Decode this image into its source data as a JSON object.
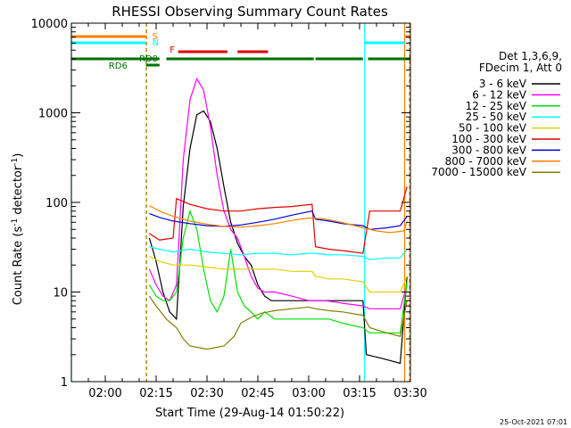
{
  "chart_data": {
    "type": "line",
    "title": "RHESSI Observing Summary Count Rates",
    "xlabel": "Start Time (29-Aug-14 01:50:22)",
    "ylabel_main": "Count Rate (s",
    "ylabel_sup": "-1",
    "ylabel_rest": " detector",
    "ylabel_sup2": "-1",
    "ylabel_end": ")",
    "footer_date": "25-Oct-2021 07:01",
    "x_axis": {
      "start": "01:50",
      "end": "03:30",
      "unit": "minutes"
    },
    "y_axis": {
      "scale": "log",
      "min": 1,
      "max": 10000
    },
    "x_ticks": [
      "02:00",
      "02:15",
      "02:30",
      "02:45",
      "03:00",
      "03:15",
      "03:30"
    ],
    "x_tick_minutes": [
      10,
      25,
      40,
      55,
      70,
      85,
      100
    ],
    "y_ticks": [
      "1",
      "10",
      "100",
      "1000",
      "10000"
    ],
    "y_tick_values": [
      1,
      10,
      100,
      1000,
      10000
    ],
    "legend": {
      "header": [
        "Det 1,3,6,9,",
        "FDecim 1, Att 0"
      ],
      "items": [
        {
          "label": "3 - 6 keV",
          "color": "#000000"
        },
        {
          "label": "6 - 12 keV",
          "color": "#ff00ff"
        },
        {
          "label": "12 - 25 keV",
          "color": "#00e000"
        },
        {
          "label": "25 - 50 keV",
          "color": "#00ffff"
        },
        {
          "label": "50 - 100 keV",
          "color": "#e0d000"
        },
        {
          "label": "100 - 300 keV",
          "color": "#e00000"
        },
        {
          "label": "300 - 800 keV",
          "color": "#0000e0"
        },
        {
          "label": "800 - 7000 keV",
          "color": "#ff8000"
        },
        {
          "label": "7000 - 15000 keV",
          "color": "#808000"
        }
      ]
    },
    "flag_labels": {
      "saa": "S",
      "night": "N",
      "flare": "F",
      "rd0": "RD0",
      "rd6": "RD6"
    },
    "flag_bars": {
      "saa": {
        "color": "#ff8000",
        "segments": [
          [
            0,
            22
          ],
          [
            98.5,
            104
          ]
        ]
      },
      "night": {
        "color": "#00ffff",
        "segments": [
          [
            0,
            22
          ],
          [
            86.5,
            98.5
          ]
        ]
      },
      "flare": {
        "color": "#e00000",
        "segments": [
          [
            31.5,
            46
          ],
          [
            49,
            58
          ]
        ]
      },
      "rd0": {
        "color": "#007000",
        "segments": [
          [
            0,
            26
          ],
          [
            28,
            71.5
          ],
          [
            72,
            86
          ],
          [
            87.5,
            104
          ]
        ]
      },
      "rd6": {
        "color": "#007000",
        "segments": [
          [
            22,
            26
          ]
        ]
      }
    },
    "vlines": [
      {
        "minute": 0,
        "color": "#00ffff",
        "dash": false
      },
      {
        "minute": 22,
        "color": "#00ffff",
        "dash": true
      },
      {
        "minute": 22.2,
        "color": "#ff8000",
        "dash": true
      },
      {
        "minute": 86.5,
        "color": "#00ffff",
        "dash": false
      },
      {
        "minute": 98.3,
        "color": "#ff8000",
        "dash": false
      },
      {
        "minute": 104,
        "color": "#ff8000",
        "dash": true
      }
    ],
    "series": [
      {
        "name": "3 - 6 keV",
        "color": "#000000",
        "points": [
          [
            23,
            40
          ],
          [
            25,
            22
          ],
          [
            27,
            10
          ],
          [
            29,
            6
          ],
          [
            31,
            5
          ],
          [
            33,
            90
          ],
          [
            35,
            400
          ],
          [
            37,
            950
          ],
          [
            39,
            1050
          ],
          [
            41,
            800
          ],
          [
            43,
            400
          ],
          [
            45,
            150
          ],
          [
            47,
            60
          ],
          [
            49,
            35
          ],
          [
            51,
            25
          ],
          [
            53,
            20
          ],
          [
            55,
            12
          ],
          [
            57,
            9
          ],
          [
            59,
            8
          ],
          [
            62,
            8
          ],
          [
            65,
            8
          ],
          [
            68,
            8
          ],
          [
            71,
            8
          ],
          [
            74,
            8
          ],
          [
            77,
            8
          ],
          [
            80,
            8
          ],
          [
            83,
            8
          ],
          [
            86,
            8
          ],
          [
            87,
            2
          ],
          [
            92,
            1.8
          ],
          [
            97,
            1.6
          ],
          [
            99,
            15
          ]
        ]
      },
      {
        "name": "6 - 12 keV",
        "color": "#ff00ff",
        "points": [
          [
            23,
            18
          ],
          [
            25,
            12
          ],
          [
            27,
            9
          ],
          [
            29,
            8
          ],
          [
            31,
            12
          ],
          [
            33,
            300
          ],
          [
            35,
            1400
          ],
          [
            37,
            2400
          ],
          [
            39,
            1800
          ],
          [
            41,
            700
          ],
          [
            43,
            200
          ],
          [
            45,
            80
          ],
          [
            47,
            50
          ],
          [
            49,
            40
          ],
          [
            51,
            25
          ],
          [
            53,
            15
          ],
          [
            55,
            11
          ],
          [
            57,
            10
          ],
          [
            60,
            10
          ],
          [
            65,
            9
          ],
          [
            70,
            8
          ],
          [
            75,
            8
          ],
          [
            80,
            7.5
          ],
          [
            86,
            7
          ],
          [
            88,
            6.5
          ],
          [
            93,
            6.5
          ],
          [
            97,
            6.5
          ],
          [
            99,
            12
          ]
        ]
      },
      {
        "name": "12 - 25 keV",
        "color": "#00e000",
        "points": [
          [
            23,
            12
          ],
          [
            25,
            9
          ],
          [
            27,
            8
          ],
          [
            29,
            8
          ],
          [
            31,
            10
          ],
          [
            33,
            40
          ],
          [
            35,
            80
          ],
          [
            37,
            50
          ],
          [
            39,
            18
          ],
          [
            41,
            8
          ],
          [
            43,
            6
          ],
          [
            45,
            9
          ],
          [
            47,
            30
          ],
          [
            49,
            10
          ],
          [
            51,
            7
          ],
          [
            53,
            6
          ],
          [
            55,
            5
          ],
          [
            57,
            6
          ],
          [
            60,
            5
          ],
          [
            63,
            5
          ],
          [
            66,
            5
          ],
          [
            70,
            5
          ],
          [
            72,
            5
          ],
          [
            76,
            5
          ],
          [
            80,
            4.5
          ],
          [
            86,
            4
          ],
          [
            88,
            3.5
          ],
          [
            93,
            3.5
          ],
          [
            97,
            3.5
          ],
          [
            99,
            13
          ]
        ]
      },
      {
        "name": "25 - 50 keV",
        "color": "#00ffff",
        "points": [
          [
            23,
            32
          ],
          [
            26,
            30
          ],
          [
            30,
            28
          ],
          [
            35,
            30
          ],
          [
            40,
            28
          ],
          [
            45,
            27
          ],
          [
            50,
            26
          ],
          [
            55,
            27
          ],
          [
            60,
            27
          ],
          [
            65,
            26
          ],
          [
            70,
            27
          ],
          [
            72,
            27
          ],
          [
            76,
            26
          ],
          [
            80,
            26
          ],
          [
            86,
            25
          ],
          [
            88,
            23
          ],
          [
            93,
            24
          ],
          [
            97,
            24
          ],
          [
            99,
            30
          ]
        ]
      },
      {
        "name": "50 - 100 keV",
        "color": "#e0d000",
        "points": [
          [
            23,
            25
          ],
          [
            26,
            22
          ],
          [
            30,
            20
          ],
          [
            35,
            20
          ],
          [
            40,
            19
          ],
          [
            45,
            18
          ],
          [
            50,
            18
          ],
          [
            55,
            18
          ],
          [
            60,
            18
          ],
          [
            65,
            17
          ],
          [
            71,
            17
          ],
          [
            72,
            15
          ],
          [
            76,
            14
          ],
          [
            80,
            14
          ],
          [
            86,
            13
          ],
          [
            88,
            10
          ],
          [
            93,
            10
          ],
          [
            97,
            10
          ],
          [
            99,
            15
          ]
        ]
      },
      {
        "name": "100 - 300 keV",
        "color": "#e00000",
        "points": [
          [
            23,
            45
          ],
          [
            26,
            38
          ],
          [
            30,
            40
          ],
          [
            31,
            110
          ],
          [
            35,
            95
          ],
          [
            40,
            85
          ],
          [
            45,
            80
          ],
          [
            50,
            80
          ],
          [
            55,
            85
          ],
          [
            60,
            88
          ],
          [
            65,
            90
          ],
          [
            71,
            95
          ],
          [
            72,
            32
          ],
          [
            76,
            30
          ],
          [
            80,
            29
          ],
          [
            86,
            27
          ],
          [
            88,
            80
          ],
          [
            93,
            80
          ],
          [
            97,
            80
          ],
          [
            99,
            150
          ]
        ]
      },
      {
        "name": "300 - 800 keV",
        "color": "#0000e0",
        "points": [
          [
            23,
            75
          ],
          [
            26,
            68
          ],
          [
            30,
            62
          ],
          [
            35,
            58
          ],
          [
            40,
            55
          ],
          [
            45,
            54
          ],
          [
            50,
            56
          ],
          [
            55,
            60
          ],
          [
            60,
            65
          ],
          [
            65,
            72
          ],
          [
            71,
            80
          ],
          [
            72,
            65
          ],
          [
            76,
            62
          ],
          [
            80,
            58
          ],
          [
            86,
            55
          ],
          [
            88,
            50
          ],
          [
            93,
            52
          ],
          [
            97,
            55
          ],
          [
            99,
            70
          ]
        ]
      },
      {
        "name": "800 - 7000 keV",
        "color": "#ff8000",
        "points": [
          [
            23,
            92
          ],
          [
            26,
            80
          ],
          [
            30,
            70
          ],
          [
            35,
            62
          ],
          [
            40,
            57
          ],
          [
            45,
            54
          ],
          [
            50,
            53
          ],
          [
            55,
            55
          ],
          [
            60,
            58
          ],
          [
            65,
            63
          ],
          [
            70,
            67
          ],
          [
            74,
            66
          ],
          [
            78,
            62
          ],
          [
            82,
            57
          ],
          [
            86,
            52
          ],
          [
            90,
            48
          ],
          [
            94,
            46
          ],
          [
            98,
            48
          ],
          [
            99,
            60
          ]
        ]
      },
      {
        "name": "7000 - 15000 keV",
        "color": "#808000",
        "points": [
          [
            23,
            9
          ],
          [
            25,
            7
          ],
          [
            28,
            5
          ],
          [
            31,
            4
          ],
          [
            33,
            3
          ],
          [
            35,
            2.5
          ],
          [
            40,
            2.3
          ],
          [
            45,
            2.5
          ],
          [
            48,
            3.2
          ],
          [
            50,
            4.5
          ],
          [
            53,
            5.2
          ],
          [
            56,
            5.8
          ],
          [
            60,
            6.2
          ],
          [
            65,
            6.5
          ],
          [
            70,
            6.8
          ],
          [
            72,
            6.5
          ],
          [
            76,
            6.2
          ],
          [
            80,
            6
          ],
          [
            86,
            5.5
          ],
          [
            88,
            4
          ],
          [
            93,
            3.5
          ],
          [
            97,
            3.2
          ],
          [
            99,
            8
          ]
        ]
      }
    ]
  }
}
